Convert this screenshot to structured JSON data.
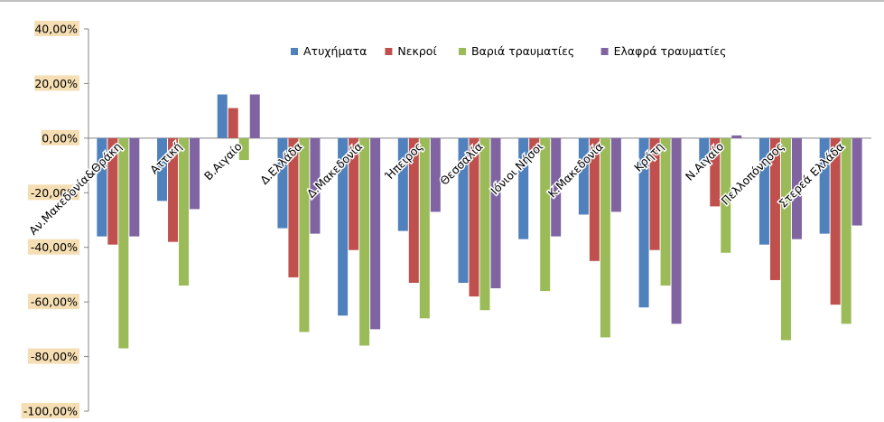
{
  "chart_data": {
    "type": "bar",
    "categories": [
      "Αν.Μακεδονία&Θράκη",
      "Αττική",
      "Β.Αιγαίο",
      "Δ.Ελλάδα",
      "Δ.Μακεδονία",
      "Ήπειρος",
      "Θεσσαλία",
      "Ιόνιοι Νήσοι",
      "Κ.Μακεδονία",
      "Κρήτη",
      "Ν.Αιγαίο",
      "Πελλοπόνησος",
      "Στερεά Ελλάδα"
    ],
    "series": [
      {
        "name": "Ατυχήματα",
        "color": "#4f81bd",
        "values": [
          -36,
          -23,
          16,
          -33,
          -65,
          -34,
          -53,
          -37,
          -28,
          -62,
          -9,
          -39,
          -35
        ]
      },
      {
        "name": "Νεκροί",
        "color": "#c0504d",
        "values": [
          -39,
          -38,
          11,
          -51,
          -41,
          -53,
          -58,
          -6,
          -45,
          -41,
          -25,
          -52,
          -61
        ]
      },
      {
        "name": "Βαριά τραυματίες",
        "color": "#9bbb59",
        "values": [
          -77,
          -54,
          -8,
          -71,
          -76,
          -66,
          -63,
          -56,
          -73,
          -54,
          -42,
          -74,
          -68
        ]
      },
      {
        "name": "Ελαφρά τραυματίες",
        "color": "#8064a2",
        "values": [
          -36,
          -26,
          16,
          -35,
          -70,
          -27,
          -55,
          -36,
          -27,
          -68,
          1,
          -37,
          -32
        ]
      }
    ],
    "y_ticks": [
      "40,00%",
      "20,00%",
      "0,00%",
      "-20,00%",
      "-40,00%",
      "-60,00%",
      "-80,00%",
      "-100,00%"
    ],
    "ylim": [
      -100,
      40
    ],
    "legend_position": "top-right",
    "grid": false,
    "tick_label_highlight": "#f5deb3",
    "title": "",
    "xlabel": "",
    "ylabel": ""
  }
}
